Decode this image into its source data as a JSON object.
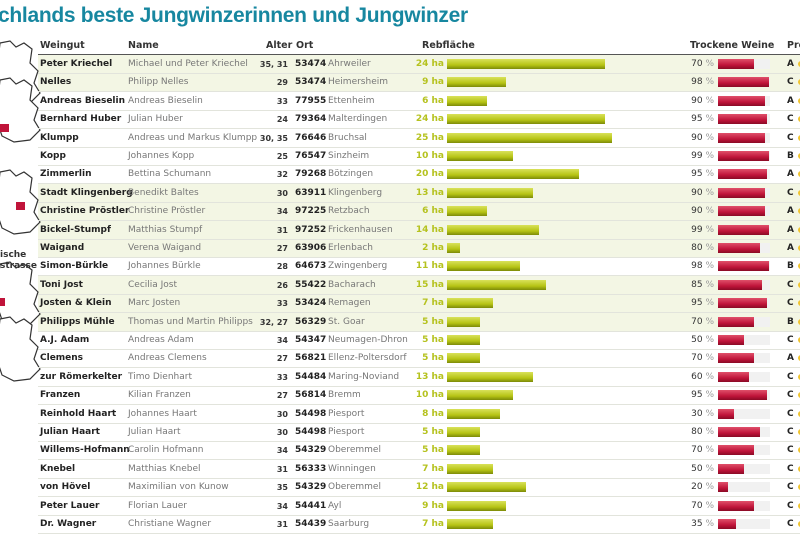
{
  "title": "chlands beste Jungwinzerinnen und Jungwinzer",
  "headers": {
    "weingut": "Weingut",
    "name": "Name",
    "alter": "Alter",
    "ort": "Ort",
    "rebflaeche": "Rebfläche",
    "trockene": "Trockene Weine",
    "preis": "Pre"
  },
  "region_label": [
    "ische",
    "strasse"
  ],
  "colors": {
    "accent": "#1787a0",
    "area_bar": "#b6c414",
    "dry_bar": "#c0143a",
    "group_bg": "#f3f6e4",
    "map_marker": "#c0143a"
  },
  "groups": [
    {
      "rows": [
        0,
        1
      ],
      "shaded": true
    },
    {
      "rows": [
        2,
        6
      ],
      "shaded": false
    },
    {
      "rows": [
        7,
        10
      ],
      "shaded": true
    },
    {
      "rows": [
        11,
        11
      ],
      "shaded": false
    },
    {
      "rows": [
        12,
        14
      ],
      "shaded": true
    },
    {
      "rows": [
        15,
        25
      ],
      "shaded": false
    }
  ],
  "rows": [
    {
      "weingut": "Peter Kriechel",
      "name": "Michael und Peter Kriechel",
      "alter": "35, 31",
      "plz": "53474",
      "ort": "Ahrweiler",
      "ha": 24,
      "trocken": 70,
      "preis": "A"
    },
    {
      "weingut": "Nelles",
      "name": "Philipp Nelles",
      "alter": "29",
      "plz": "53474",
      "ort": "Heimersheim",
      "ha": 9,
      "trocken": 98,
      "preis": "C"
    },
    {
      "weingut": "Andreas Bieselin",
      "name": "Andreas Bieselin",
      "alter": "33",
      "plz": "77955",
      "ort": "Ettenheim",
      "ha": 6,
      "trocken": 90,
      "preis": "A"
    },
    {
      "weingut": "Bernhard Huber",
      "name": "Julian Huber",
      "alter": "24",
      "plz": "79364",
      "ort": "Malterdingen",
      "ha": 24,
      "trocken": 95,
      "preis": "C"
    },
    {
      "weingut": "Klumpp",
      "name": "Andreas und Markus Klumpp",
      "alter": "30, 35",
      "plz": "76646",
      "ort": "Bruchsal",
      "ha": 25,
      "trocken": 90,
      "preis": "C"
    },
    {
      "weingut": "Kopp",
      "name": "Johannes Kopp",
      "alter": "25",
      "plz": "76547",
      "ort": "Sinzheim",
      "ha": 10,
      "trocken": 99,
      "preis": "B"
    },
    {
      "weingut": "Zimmerlin",
      "name": "Bettina Schumann",
      "alter": "32",
      "plz": "79268",
      "ort": "Bötzingen",
      "ha": 20,
      "trocken": 95,
      "preis": "A"
    },
    {
      "weingut": "Stadt Klingenberg",
      "name": "Benedikt Baltes",
      "alter": "30",
      "plz": "63911",
      "ort": "Klingenberg",
      "ha": 13,
      "trocken": 90,
      "preis": "C"
    },
    {
      "weingut": "Christine Pröstler",
      "name": "Christine Pröstler",
      "alter": "34",
      "plz": "97225",
      "ort": "Retzbach",
      "ha": 6,
      "trocken": 90,
      "preis": "A"
    },
    {
      "weingut": "Bickel-Stumpf",
      "name": "Matthias Stumpf",
      "alter": "31",
      "plz": "97252",
      "ort": "Frickenhausen",
      "ha": 14,
      "trocken": 99,
      "preis": "A"
    },
    {
      "weingut": "Waigand",
      "name": "Verena Waigand",
      "alter": "27",
      "plz": "63906",
      "ort": "Erlenbach",
      "ha": 2,
      "trocken": 80,
      "preis": "A"
    },
    {
      "weingut": "Simon-Bürkle",
      "name": "Johannes Bürkle",
      "alter": "28",
      "plz": "64673",
      "ort": "Zwingenberg",
      "ha": 11,
      "trocken": 98,
      "preis": "B"
    },
    {
      "weingut": "Toni Jost",
      "name": "Cecilia Jost",
      "alter": "26",
      "plz": "55422",
      "ort": "Bacharach",
      "ha": 15,
      "trocken": 85,
      "preis": "C"
    },
    {
      "weingut": "Josten & Klein",
      "name": "Marc Josten",
      "alter": "33",
      "plz": "53424",
      "ort": "Remagen",
      "ha": 7,
      "trocken": 95,
      "preis": "C"
    },
    {
      "weingut": "Philipps Mühle",
      "name": "Thomas und Martin Philipps",
      "alter": "32, 27",
      "plz": "56329",
      "ort": "St. Goar",
      "ha": 5,
      "trocken": 70,
      "preis": "B"
    },
    {
      "weingut": "A.J. Adam",
      "name": "Andreas Adam",
      "alter": "34",
      "plz": "54347",
      "ort": "Neumagen-Dhron",
      "ha": 5,
      "trocken": 50,
      "preis": "C"
    },
    {
      "weingut": "Clemens",
      "name": "Andreas Clemens",
      "alter": "27",
      "plz": "56821",
      "ort": "Ellenz-Poltersdorf",
      "ha": 5,
      "trocken": 70,
      "preis": "A"
    },
    {
      "weingut": "zur Römerkelter",
      "name": "Timo Dienhart",
      "alter": "33",
      "plz": "54484",
      "ort": "Maring-Noviand",
      "ha": 13,
      "trocken": 60,
      "preis": "C"
    },
    {
      "weingut": "Franzen",
      "name": "Kilian Franzen",
      "alter": "27",
      "plz": "56814",
      "ort": "Bremm",
      "ha": 10,
      "trocken": 95,
      "preis": "C"
    },
    {
      "weingut": "Reinhold Haart",
      "name": "Johannes Haart",
      "alter": "30",
      "plz": "54498",
      "ort": "Piesport",
      "ha": 8,
      "trocken": 30,
      "preis": "C"
    },
    {
      "weingut": "Julian Haart",
      "name": "Julian Haart",
      "alter": "30",
      "plz": "54498",
      "ort": "Piesport",
      "ha": 5,
      "trocken": 80,
      "preis": "C"
    },
    {
      "weingut": "Willems-Hofmann",
      "name": "Carolin Hofmann",
      "alter": "34",
      "plz": "54329",
      "ort": "Oberemmel",
      "ha": 5,
      "trocken": 70,
      "preis": "C"
    },
    {
      "weingut": "Knebel",
      "name": "Matthias Knebel",
      "alter": "31",
      "plz": "56333",
      "ort": "Winningen",
      "ha": 7,
      "trocken": 50,
      "preis": "C"
    },
    {
      "weingut": "von Hövel",
      "name": "Maximilian von Kunow",
      "alter": "35",
      "plz": "54329",
      "ort": "Oberemmel",
      "ha": 12,
      "trocken": 20,
      "preis": "C"
    },
    {
      "weingut": "Peter Lauer",
      "name": "Florian Lauer",
      "alter": "34",
      "plz": "54441",
      "ort": "Ayl",
      "ha": 9,
      "trocken": 70,
      "preis": "C"
    },
    {
      "weingut": "Dr. Wagner",
      "name": "Christiane Wagner",
      "alter": "31",
      "plz": "54439",
      "ort": "Saarburg",
      "ha": 7,
      "trocken": 35,
      "preis": "C"
    }
  ]
}
